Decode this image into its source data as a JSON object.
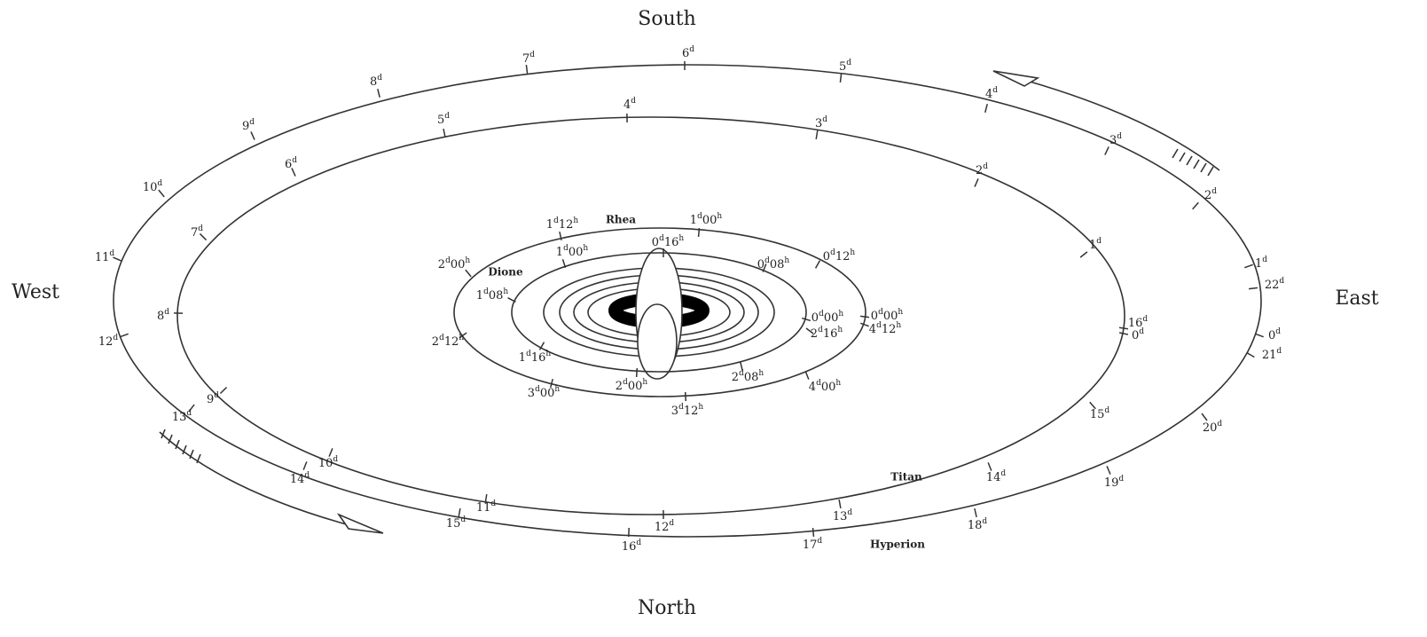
{
  "directions": {
    "south": "South",
    "north": "North",
    "west": "West",
    "east": "East"
  },
  "orbits": [
    {
      "name": "Hyperion",
      "ticks": [
        "0d",
        "1d",
        "2d",
        "3d",
        "4d",
        "5d",
        "6d",
        "7d",
        "8d",
        "9d",
        "10d",
        "11d",
        "12d",
        "13d",
        "14d",
        "15d",
        "16d",
        "17d",
        "18d",
        "19d",
        "20d",
        "21d",
        "22d"
      ]
    },
    {
      "name": "Titan",
      "ticks": [
        "0d",
        "1d",
        "2d",
        "3d",
        "4d",
        "5d",
        "6d",
        "7d",
        "8d",
        "9d",
        "10d",
        "11d",
        "12d",
        "13d",
        "14d",
        "15d",
        "16d"
      ]
    },
    {
      "name": "Rhea",
      "ticks": [
        "0d00h",
        "0d12h",
        "1d00h",
        "1d12h",
        "2d00h",
        "2d12h",
        "3d00h",
        "3d12h",
        "4d00h",
        "4d12h"
      ]
    },
    {
      "name": "Dione",
      "ticks": [
        "0d00h",
        "0d08h",
        "0d16h",
        "1d00h",
        "1d08h",
        "1d16h",
        "2d00h",
        "2d08h",
        "2d16h"
      ]
    }
  ]
}
